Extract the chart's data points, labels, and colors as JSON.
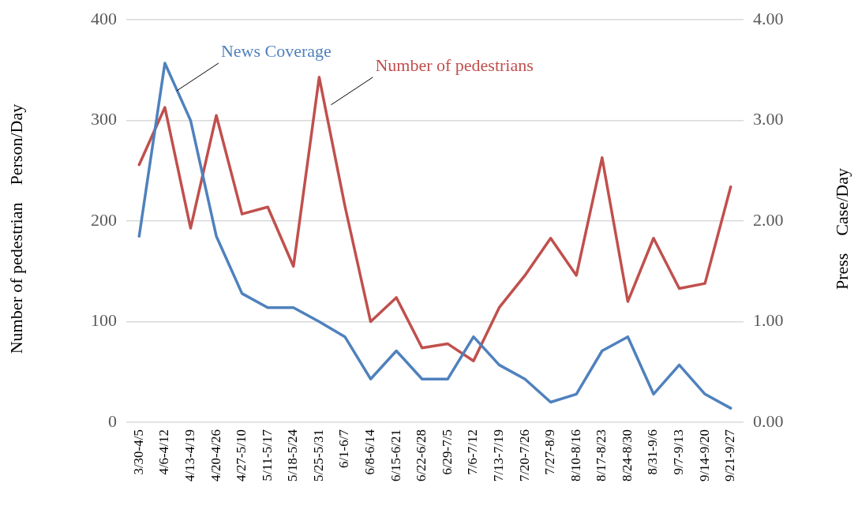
{
  "chart_data": {
    "type": "line",
    "ylabel": "Number of pedestrian    Person/Day",
    "y2label": "Press    Case/Day",
    "categories": [
      "3/30-4/5",
      "4/6-4/12",
      "4/13-4/19",
      "4/20-4/26",
      "4/27-5/10",
      "5/11-5/17",
      "5/18-5/24",
      "5/25-5/31",
      "6/1-6/7",
      "6/8-6/14",
      "6/15-6/21",
      "6/22-6/28",
      "6/29-7/5",
      "7/6-7/12",
      "7/13-7/19",
      "7/20-7/26",
      "7/27-8/9",
      "8/10-8/16",
      "8/17-8/23",
      "8/24-8/30",
      "8/31-9/6",
      "9/7-9/13",
      "9/14-9/20",
      "9/21-9/27"
    ],
    "series": [
      {
        "name": "News Coverage",
        "color": "#4f81bd",
        "axis": "y2",
        "values": [
          1.85,
          3.57,
          3.0,
          1.85,
          1.28,
          1.14,
          1.14,
          1.0,
          0.85,
          0.43,
          0.71,
          0.43,
          0.43,
          0.85,
          0.57,
          0.43,
          0.2,
          0.28,
          0.71,
          0.85,
          0.28,
          0.57,
          0.28,
          0.14
        ]
      },
      {
        "name": "Number of pedestrians",
        "color": "#c0504d",
        "values": [
          256,
          313,
          193,
          305,
          207,
          214,
          155,
          343,
          215,
          100,
          124,
          74,
          78,
          61,
          114,
          146,
          183,
          146,
          263,
          120,
          183,
          133,
          138,
          234
        ]
      }
    ],
    "ylim": [
      0,
      400
    ],
    "yticks": [
      0,
      100,
      200,
      300,
      400
    ],
    "y2lim": [
      0,
      4
    ],
    "y2ticks": [
      {
        "value": 0,
        "label": "0.00"
      },
      {
        "value": 1,
        "label": "1.00"
      },
      {
        "value": 2,
        "label": "2.00"
      },
      {
        "value": 3,
        "label": "3.00"
      },
      {
        "value": 4,
        "label": "4.00"
      }
    ],
    "grid": "y",
    "legend": false,
    "marker": "none",
    "line_style": "solid"
  }
}
